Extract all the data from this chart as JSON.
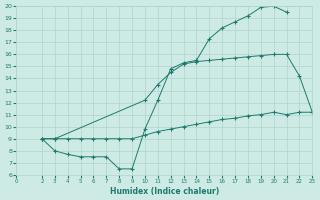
{
  "xlabel": "Humidex (Indice chaleur)",
  "xlim": [
    0,
    23
  ],
  "ylim": [
    6,
    20
  ],
  "xticks": [
    0,
    2,
    3,
    4,
    5,
    6,
    7,
    8,
    9,
    10,
    11,
    12,
    13,
    14,
    15,
    16,
    17,
    18,
    19,
    20,
    21,
    22,
    23
  ],
  "yticks": [
    6,
    7,
    8,
    9,
    10,
    11,
    12,
    13,
    14,
    15,
    16,
    17,
    18,
    19,
    20
  ],
  "bg_color": "#ceeae5",
  "grid_color": "#afd4ce",
  "line_color": "#1e7a6d",
  "line1_x": [
    2,
    3,
    4,
    5,
    6,
    7,
    8,
    9,
    10,
    11,
    12,
    13,
    14,
    15,
    16,
    17,
    18,
    19,
    20,
    21
  ],
  "line1_y": [
    9.0,
    8.0,
    7.7,
    7.5,
    7.5,
    7.5,
    6.5,
    6.5,
    9.8,
    12.2,
    14.8,
    15.3,
    15.5,
    17.3,
    18.2,
    18.7,
    19.2,
    19.9,
    20.0,
    19.5
  ],
  "line2_x": [
    2,
    3,
    4,
    5,
    6,
    7,
    8,
    9,
    10,
    11,
    12,
    13,
    14,
    15,
    16,
    17,
    18,
    19,
    20,
    21,
    22,
    23
  ],
  "line2_y": [
    9.0,
    9.0,
    9.0,
    9.0,
    9.0,
    9.0,
    9.0,
    9.0,
    9.3,
    9.6,
    9.8,
    10.0,
    10.2,
    10.4,
    10.6,
    10.7,
    10.9,
    11.0,
    11.2,
    11.0,
    11.2,
    11.2
  ],
  "line3_x": [
    2,
    3,
    10,
    11,
    12,
    13,
    14,
    15,
    16,
    17,
    18,
    19,
    20,
    21,
    22,
    23
  ],
  "line3_y": [
    9.0,
    9.0,
    12.2,
    13.5,
    14.5,
    15.2,
    15.4,
    15.5,
    15.6,
    15.7,
    15.8,
    15.9,
    16.0,
    16.0,
    14.2,
    11.2
  ]
}
